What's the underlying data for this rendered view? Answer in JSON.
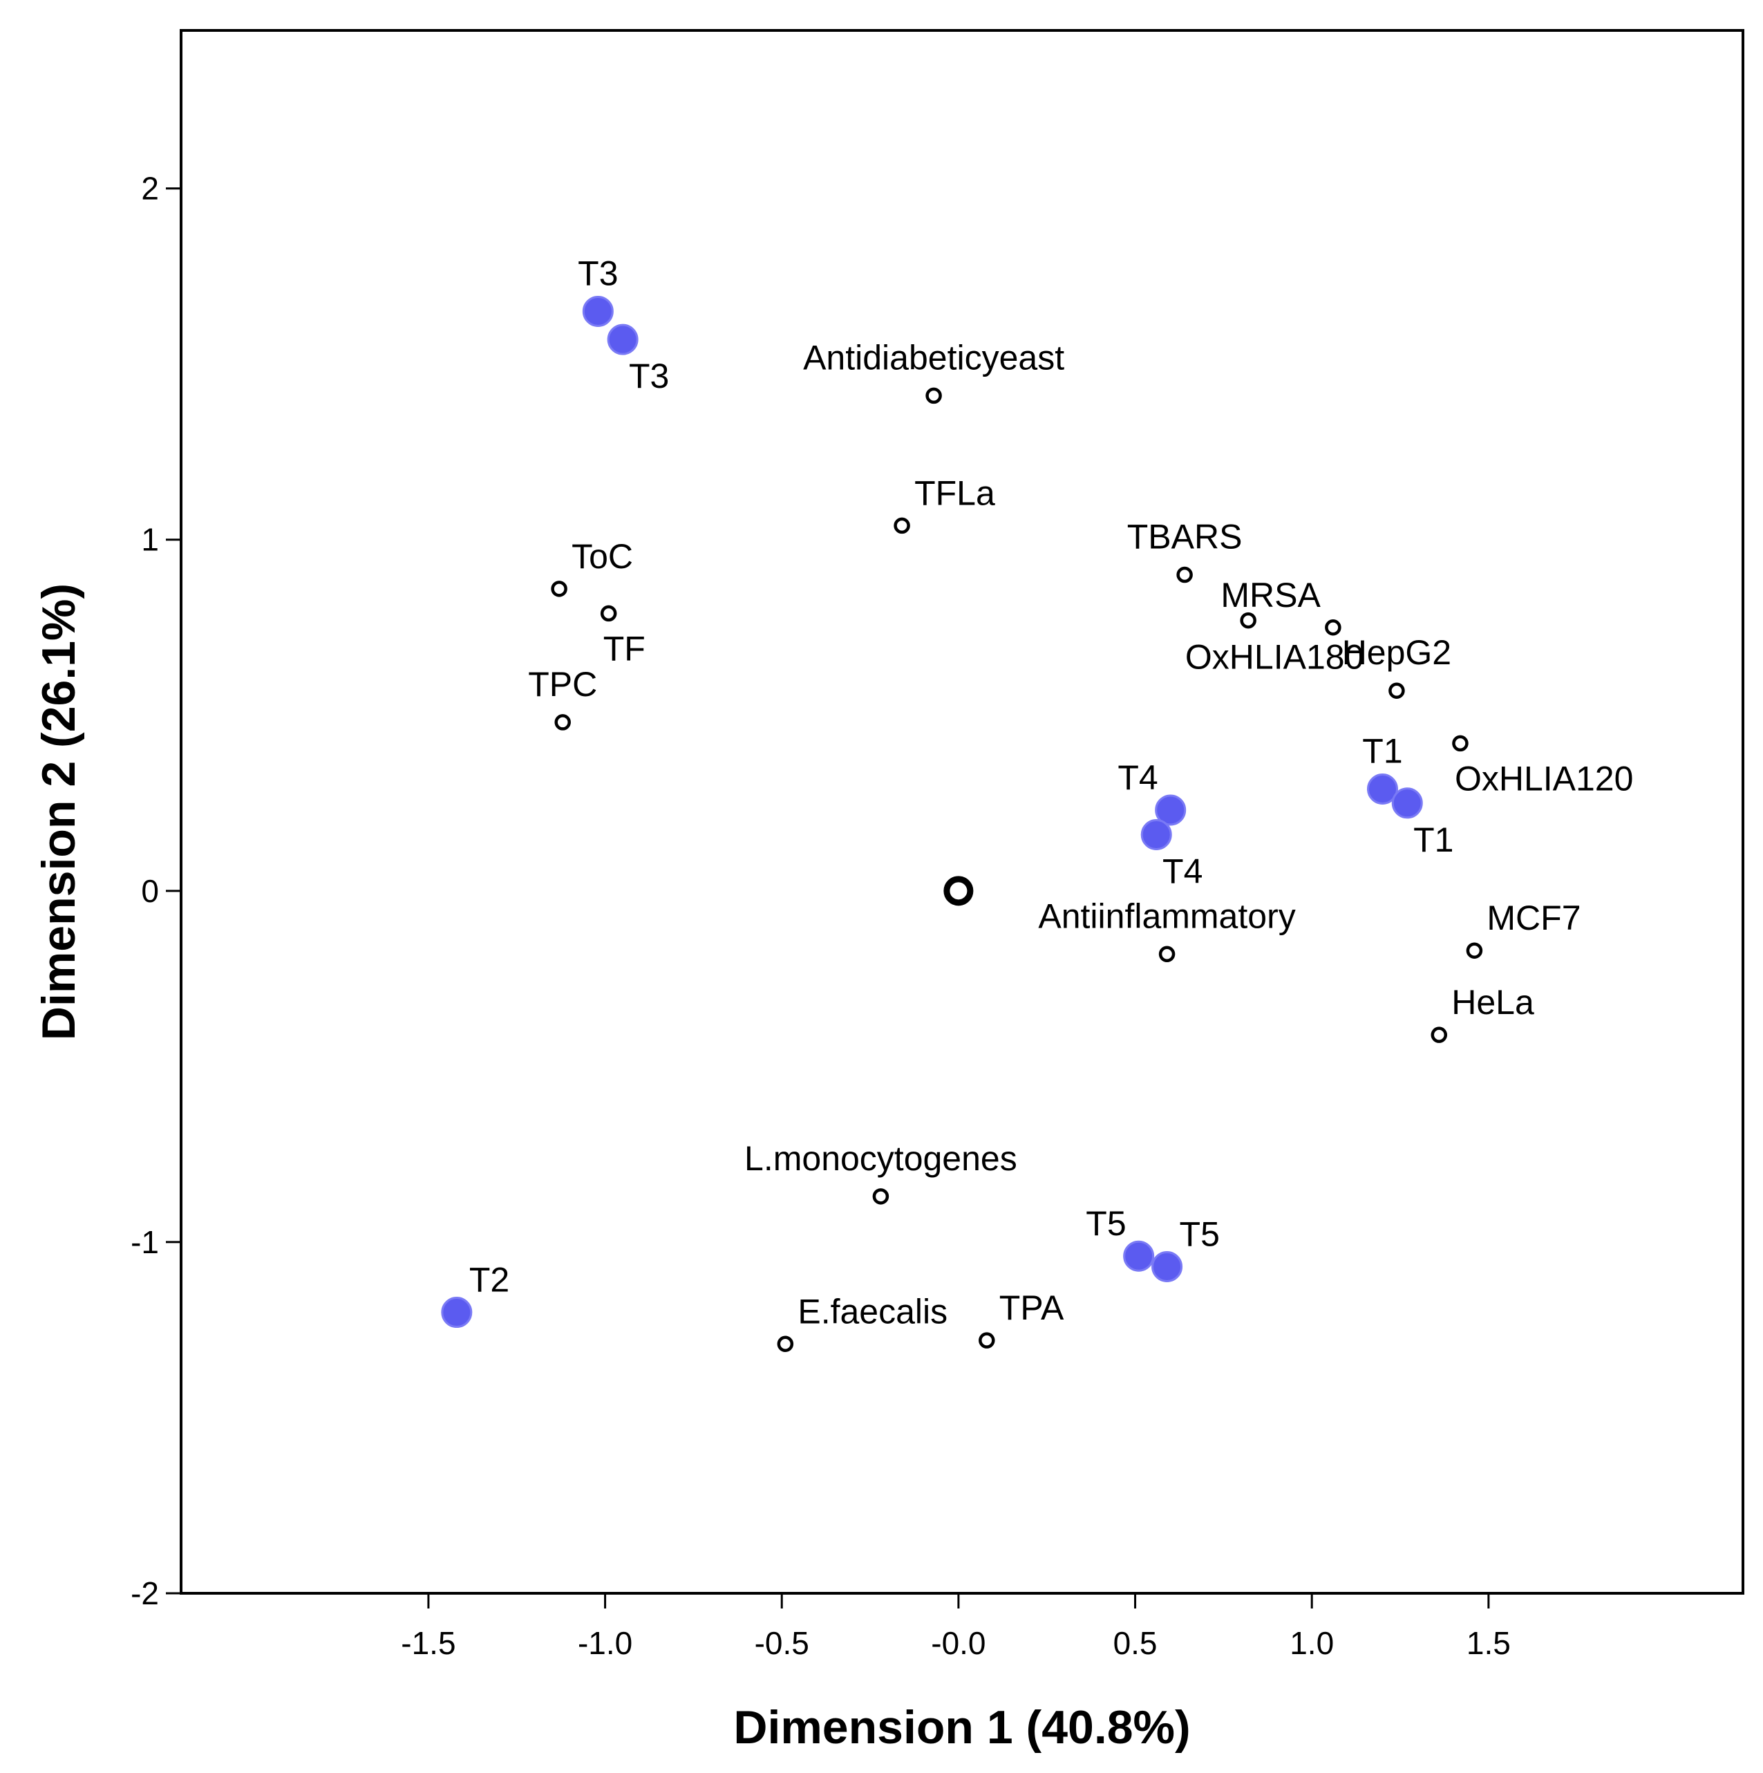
{
  "chart_data": {
    "type": "scatter",
    "xlabel": "Dimension 1 (40.8%)",
    "ylabel": "Dimension 2 (26.1%)",
    "xlim": [
      -2.2,
      2.22
    ],
    "ylim": [
      -2.0,
      2.45
    ],
    "xticks": [
      -1.5,
      -1.0,
      -0.5,
      0.0,
      0.5,
      1.0,
      1.5
    ],
    "xtick_labels": [
      "-1.5",
      "-1.0",
      "-0.5",
      "-0.0",
      "0.5",
      "1.0",
      "1.5"
    ],
    "yticks": [
      -2,
      -1,
      0,
      1,
      2
    ],
    "ytick_labels": [
      "-2",
      "-1",
      "0",
      "1",
      "2"
    ],
    "grid": false,
    "colors": {
      "object": "#5B5BF0",
      "variable": "#000000",
      "centroid": "#000000",
      "frame": "#000000"
    },
    "series": [
      {
        "name": "objects",
        "style": "filled-blue",
        "points": [
          {
            "label": "T3",
            "x": -1.02,
            "y": 1.65,
            "anchor": "above"
          },
          {
            "label": "T3",
            "x": -0.95,
            "y": 1.57,
            "anchor": "below"
          },
          {
            "label": "T4",
            "x": 0.6,
            "y": 0.23,
            "anchor": "above-left"
          },
          {
            "label": "T4",
            "x": 0.56,
            "y": 0.16,
            "anchor": "below"
          },
          {
            "label": "T1",
            "x": 1.2,
            "y": 0.29,
            "anchor": "above"
          },
          {
            "label": "T1",
            "x": 1.27,
            "y": 0.25,
            "anchor": "below"
          },
          {
            "label": "T5",
            "x": 0.51,
            "y": -1.04,
            "anchor": "above-left"
          },
          {
            "label": "T5",
            "x": 0.59,
            "y": -1.07,
            "anchor": "above-right"
          },
          {
            "label": "T2",
            "x": -1.42,
            "y": -1.2,
            "anchor": "above-right"
          }
        ]
      },
      {
        "name": "variables",
        "style": "open-circle",
        "points": [
          {
            "label": "Antidiabeticyeast",
            "x": -0.07,
            "y": 1.41,
            "anchor": "above"
          },
          {
            "label": "TFLa",
            "x": -0.16,
            "y": 1.04,
            "anchor": "above-right"
          },
          {
            "label": "ToC",
            "x": -1.13,
            "y": 0.86,
            "anchor": "above-right"
          },
          {
            "label": "TF",
            "x": -0.99,
            "y": 0.79,
            "anchor": "below-right"
          },
          {
            "label": "TPC",
            "x": -1.12,
            "y": 0.48,
            "anchor": "above"
          },
          {
            "label": "TBARS",
            "x": 0.64,
            "y": 0.9,
            "anchor": "above"
          },
          {
            "label": "OxHLIA180",
            "x": 0.82,
            "y": 0.77,
            "anchor": "below"
          },
          {
            "label": "MRSA",
            "x": 1.06,
            "y": 0.75,
            "anchor": "above-left"
          },
          {
            "label": "HepG2",
            "x": 1.24,
            "y": 0.57,
            "anchor": "above"
          },
          {
            "label": "OxHLIA120",
            "x": 1.42,
            "y": 0.42,
            "anchor": "below-right"
          },
          {
            "label": "Antiinflammatory",
            "x": 0.59,
            "y": -0.18,
            "anchor": "above"
          },
          {
            "label": "MCF7",
            "x": 1.46,
            "y": -0.17,
            "anchor": "above-right"
          },
          {
            "label": "HeLa",
            "x": 1.36,
            "y": -0.41,
            "anchor": "above-right"
          },
          {
            "label": "L.monocytogenes",
            "x": -0.22,
            "y": -0.87,
            "anchor": "above"
          },
          {
            "label": "E.faecalis",
            "x": -0.49,
            "y": -1.29,
            "anchor": "above-right"
          },
          {
            "label": "TPA",
            "x": 0.08,
            "y": -1.28,
            "anchor": "above-right"
          }
        ]
      },
      {
        "name": "centroid",
        "style": "centroid",
        "points": [
          {
            "label": "",
            "x": 0.0,
            "y": 0.0,
            "anchor": "none"
          }
        ]
      }
    ]
  }
}
